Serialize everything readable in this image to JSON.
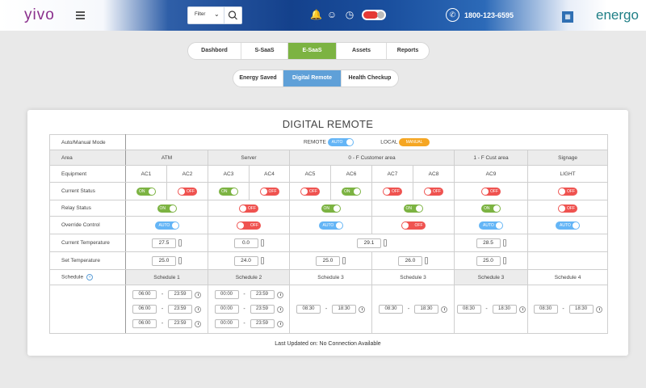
{
  "brand": {
    "left": "yivo",
    "right": "energo"
  },
  "header": {
    "filter_label": "Filter",
    "phone": "1800-123-6595"
  },
  "tabs": [
    "Dashbord",
    "S-SaaS",
    "E-SaaS",
    "Assets",
    "Reports"
  ],
  "active_tab": "E-SaaS",
  "subtabs": [
    "Energy Saved",
    "Digital Remote",
    "Health Checkup"
  ],
  "active_subtab": "Digital Remote",
  "card": {
    "title": "DIGITAL REMOTE",
    "mode_label": "Auto/Manual Mode",
    "remote_label": "REMOTE",
    "remote_toggle": "AUTO",
    "local_label": "LOCAL",
    "local_badge": "MANUAL",
    "row_labels": {
      "area": "Area",
      "equipment": "Equipment",
      "current_status": "Current Status",
      "relay_status": "Relay Status",
      "override": "Override Control",
      "current_temp": "Current Temperature",
      "set_temp": "Set Temperature",
      "schedule": "Schedule"
    },
    "areas": [
      "ATM",
      "Server",
      "0 - F  Customer area",
      "1 - F Cust area",
      "Signage"
    ],
    "equipment": [
      "AC1",
      "AC2",
      "AC3",
      "AC4",
      "AC5",
      "AC6",
      "AC7",
      "AC8",
      "AC9",
      "LIGHT"
    ],
    "current_status": [
      "ON",
      "OFF",
      "ON",
      "OFF",
      "OFF",
      "ON",
      "OFF",
      "OFF",
      "OFF",
      "OFF"
    ],
    "relay_status": [
      "ON",
      "OFF",
      "ON",
      "ON",
      "ON",
      "OFF"
    ],
    "override": [
      "AUTO",
      "OFF",
      "AUTO",
      "OFF",
      "AUTO",
      "AUTO"
    ],
    "current_temp": [
      "27.5",
      "0.0",
      "29.1",
      "28.5"
    ],
    "set_temp": [
      "25.0",
      "24.0",
      "25.0",
      "26.0",
      "25.0"
    ],
    "schedules": [
      "Schedule 1",
      "Schedule 2",
      "Schedule 3",
      "Schedule 3",
      "Schedule 3",
      "Schedule 4"
    ],
    "times": {
      "s1": [
        [
          "06:00",
          "23:59"
        ],
        [
          "06:00",
          "23:59"
        ],
        [
          "06:00",
          "23:59"
        ]
      ],
      "s2": [
        [
          "00:00",
          "23:59"
        ],
        [
          "00:00",
          "23:59"
        ],
        [
          "00:00",
          "23:59"
        ]
      ],
      "s3a": [
        "08:30",
        "18:30"
      ],
      "s3b": [
        "08:30",
        "18:30"
      ],
      "s3c": [
        "08:30",
        "18:30"
      ],
      "s4": [
        "08:30",
        "18:30"
      ]
    },
    "footer": "Last Updated on: No Connection Available"
  }
}
